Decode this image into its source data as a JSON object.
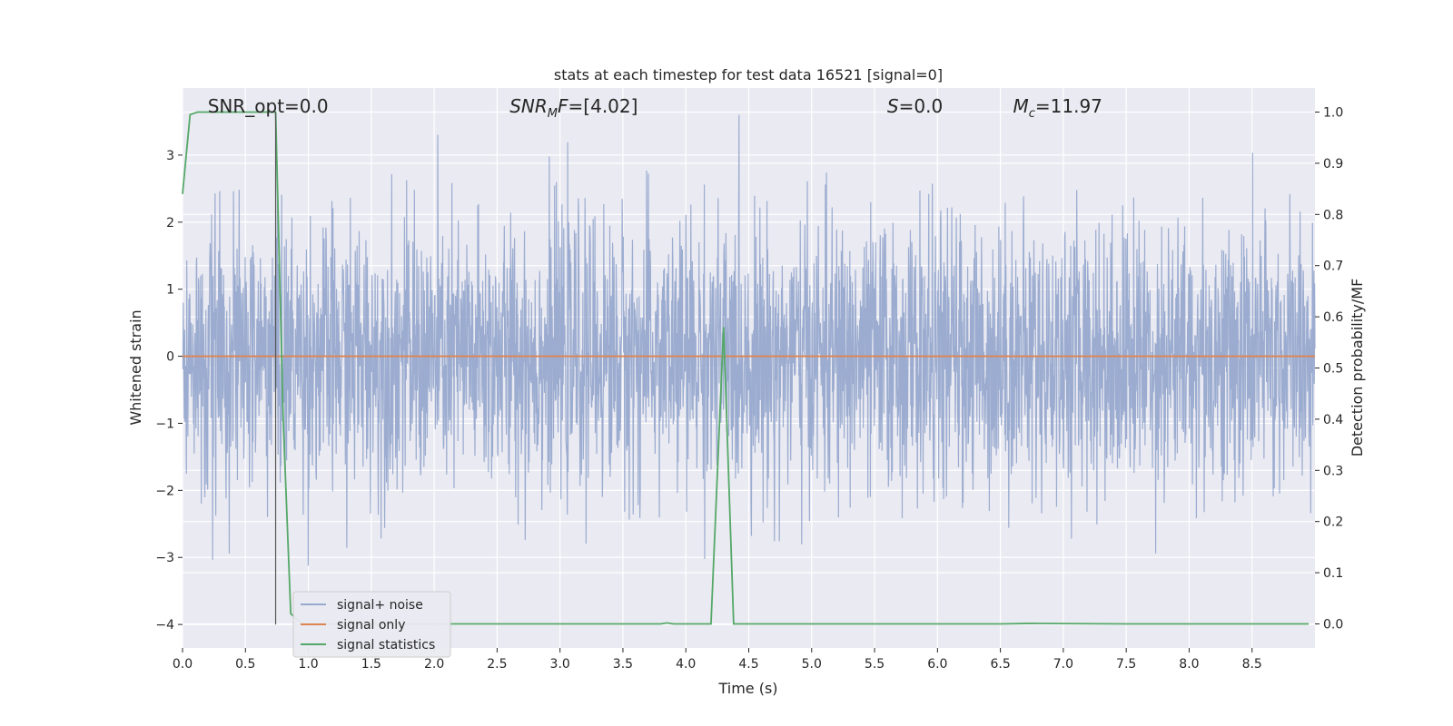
{
  "chart_data": {
    "type": "line",
    "title": "stats at each timestep for test data 16521 [signal=0]",
    "xlabel": "Time (s)",
    "ylabel": "Whitened strain",
    "y2label": "Detection probability/MF",
    "xlim": [
      0,
      9.0
    ],
    "ylim": [
      -4.35,
      4.0
    ],
    "y2lim": [
      -0.047,
      1.047
    ],
    "grid": true,
    "legend_position": "lower-left",
    "xticks": [
      "0.0",
      "0.5",
      "1.0",
      "1.5",
      "2.0",
      "2.5",
      "3.0",
      "3.5",
      "4.0",
      "4.5",
      "5.0",
      "5.5",
      "6.0",
      "6.5",
      "7.0",
      "7.5",
      "8.0",
      "8.5"
    ],
    "yticks": [
      "−4",
      "−3",
      "−2",
      "−1",
      "0",
      "1",
      "2",
      "3"
    ],
    "y2ticks": [
      "0.0",
      "0.1",
      "0.2",
      "0.3",
      "0.4",
      "0.5",
      "0.6",
      "0.7",
      "0.8",
      "0.9",
      "1.0"
    ],
    "annotations": [
      {
        "prefix": "SNR_opt",
        "sub": "",
        "text": "=0.0",
        "italic": false,
        "x": 0.2
      },
      {
        "prefix": "SNR",
        "sub": "M",
        "suffix": "F",
        "text": "=[4.02]",
        "italic": true,
        "x": 2.6
      },
      {
        "prefix": "S",
        "sub": "",
        "text": "=0.0",
        "italic": true,
        "x": 5.6
      },
      {
        "prefix": "M",
        "sub": "c",
        "text": "=11.97",
        "italic": true,
        "x": 6.6
      }
    ],
    "vline_x": 0.74,
    "series": [
      {
        "name": "signal+ noise",
        "color": "#97a9cd",
        "kind": "noise",
        "approx_range": [
          -4.0,
          3.6
        ],
        "x_range": [
          0,
          9.0
        ]
      },
      {
        "name": "signal only",
        "color": "#dd8452",
        "kind": "line",
        "x": [
          0,
          9.0
        ],
        "y": [
          0,
          0
        ]
      },
      {
        "name": "signal statistics",
        "color": "#55a868",
        "axis": "right",
        "x": [
          0.0,
          0.06,
          0.12,
          0.3,
          0.5,
          0.68,
          0.74,
          0.8,
          0.86,
          0.95,
          1.5,
          2.5,
          3.5,
          3.8,
          3.85,
          3.9,
          4.0,
          4.2,
          4.3,
          4.38,
          4.5,
          5.5,
          6.5,
          6.75,
          7.5,
          8.5,
          8.95
        ],
        "y": [
          0.84,
          0.995,
          1.0,
          1.0,
          1.0,
          1.0,
          1.0,
          0.4,
          0.02,
          0.0,
          0.0,
          0.0,
          0.0,
          0.0,
          0.002,
          0.0,
          0.0,
          0.0,
          0.58,
          0.0,
          0.0,
          0.0,
          0.0,
          0.001,
          0.0,
          0.0,
          0.0
        ]
      }
    ]
  }
}
